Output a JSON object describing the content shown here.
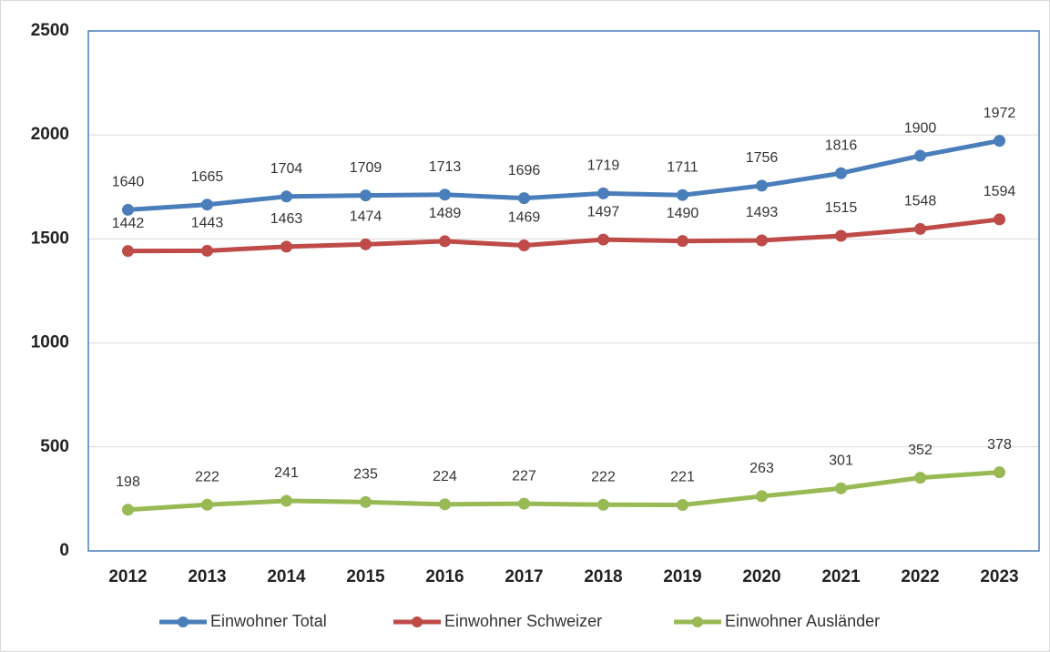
{
  "chart_data": {
    "type": "line",
    "categories": [
      "2012",
      "2013",
      "2014",
      "2015",
      "2016",
      "2017",
      "2018",
      "2019",
      "2020",
      "2021",
      "2022",
      "2023"
    ],
    "series": [
      {
        "name": "Einwohner Total",
        "color": "#4a7ebb",
        "values": [
          1640,
          1665,
          1704,
          1709,
          1713,
          1696,
          1719,
          1711,
          1756,
          1816,
          1900,
          1972
        ]
      },
      {
        "name": "Einwohner Schweizer",
        "color": "#be4b48",
        "values": [
          1442,
          1443,
          1463,
          1474,
          1489,
          1469,
          1497,
          1490,
          1493,
          1515,
          1548,
          1594
        ]
      },
      {
        "name": "Einwohner Ausländer",
        "color": "#98b954",
        "values": [
          198,
          222,
          241,
          235,
          224,
          227,
          222,
          221,
          263,
          301,
          352,
          378
        ]
      }
    ],
    "ylim": [
      0,
      2500
    ],
    "yticks": [
      0,
      500,
      1000,
      1500,
      2000,
      2500
    ],
    "grid": true,
    "legend": "bottom"
  }
}
